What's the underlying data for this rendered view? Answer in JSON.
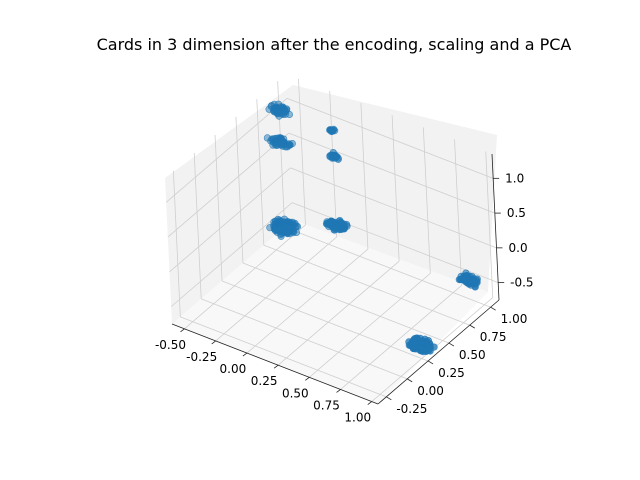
{
  "chart_data": {
    "type": "scatter",
    "title": "Cards in 3 dimension after the encoding, scaling and a PCA",
    "xlabel": "",
    "ylabel": "",
    "zlabel": "",
    "grid": true,
    "x_ticks": [
      "-0.50",
      "-0.25",
      "0.00",
      "0.25",
      "0.50",
      "0.75",
      "1.00"
    ],
    "y_ticks": [
      "-0.25",
      "0.00",
      "0.25",
      "0.50",
      "0.75",
      "1.00"
    ],
    "z_ticks": [
      "-0.5",
      "0.0",
      "0.5",
      "1.0"
    ],
    "xlim": [
      -0.6,
      1.05
    ],
    "ylim": [
      -0.35,
      1.1
    ],
    "zlim": [
      -0.75,
      1.35
    ],
    "point_color": "#1f77b4",
    "clusters": [
      {
        "x": -0.5,
        "y": 0.86,
        "z": 1.15,
        "spread": [
          0.1,
          0.06,
          0.05
        ],
        "count": 60
      },
      {
        "x": -0.5,
        "y": 0.86,
        "z": 0.68,
        "spread": [
          0.1,
          0.06,
          0.05
        ],
        "count": 60
      },
      {
        "x": -0.5,
        "y": 0.86,
        "z": -0.55,
        "spread": [
          0.12,
          0.1,
          0.05
        ],
        "count": 170
      },
      {
        "x": 0.0,
        "y": 0.75,
        "z": 1.32,
        "spread": [
          0.06,
          0.03,
          0.02
        ],
        "count": 10
      },
      {
        "x": 0.0,
        "y": 0.75,
        "z": 0.95,
        "spread": [
          0.06,
          0.03,
          0.03
        ],
        "count": 20
      },
      {
        "x": 0.0,
        "y": 0.75,
        "z": -0.05,
        "spread": [
          0.1,
          0.07,
          0.05
        ],
        "count": 80
      },
      {
        "x": 1.0,
        "y": 0.25,
        "z": -0.55,
        "spread": [
          0.1,
          0.08,
          0.04
        ],
        "count": 170
      },
      {
        "x": 0.85,
        "y": 1.05,
        "z": -0.55,
        "spread": [
          0.1,
          0.06,
          0.04
        ],
        "count": 70
      }
    ]
  }
}
